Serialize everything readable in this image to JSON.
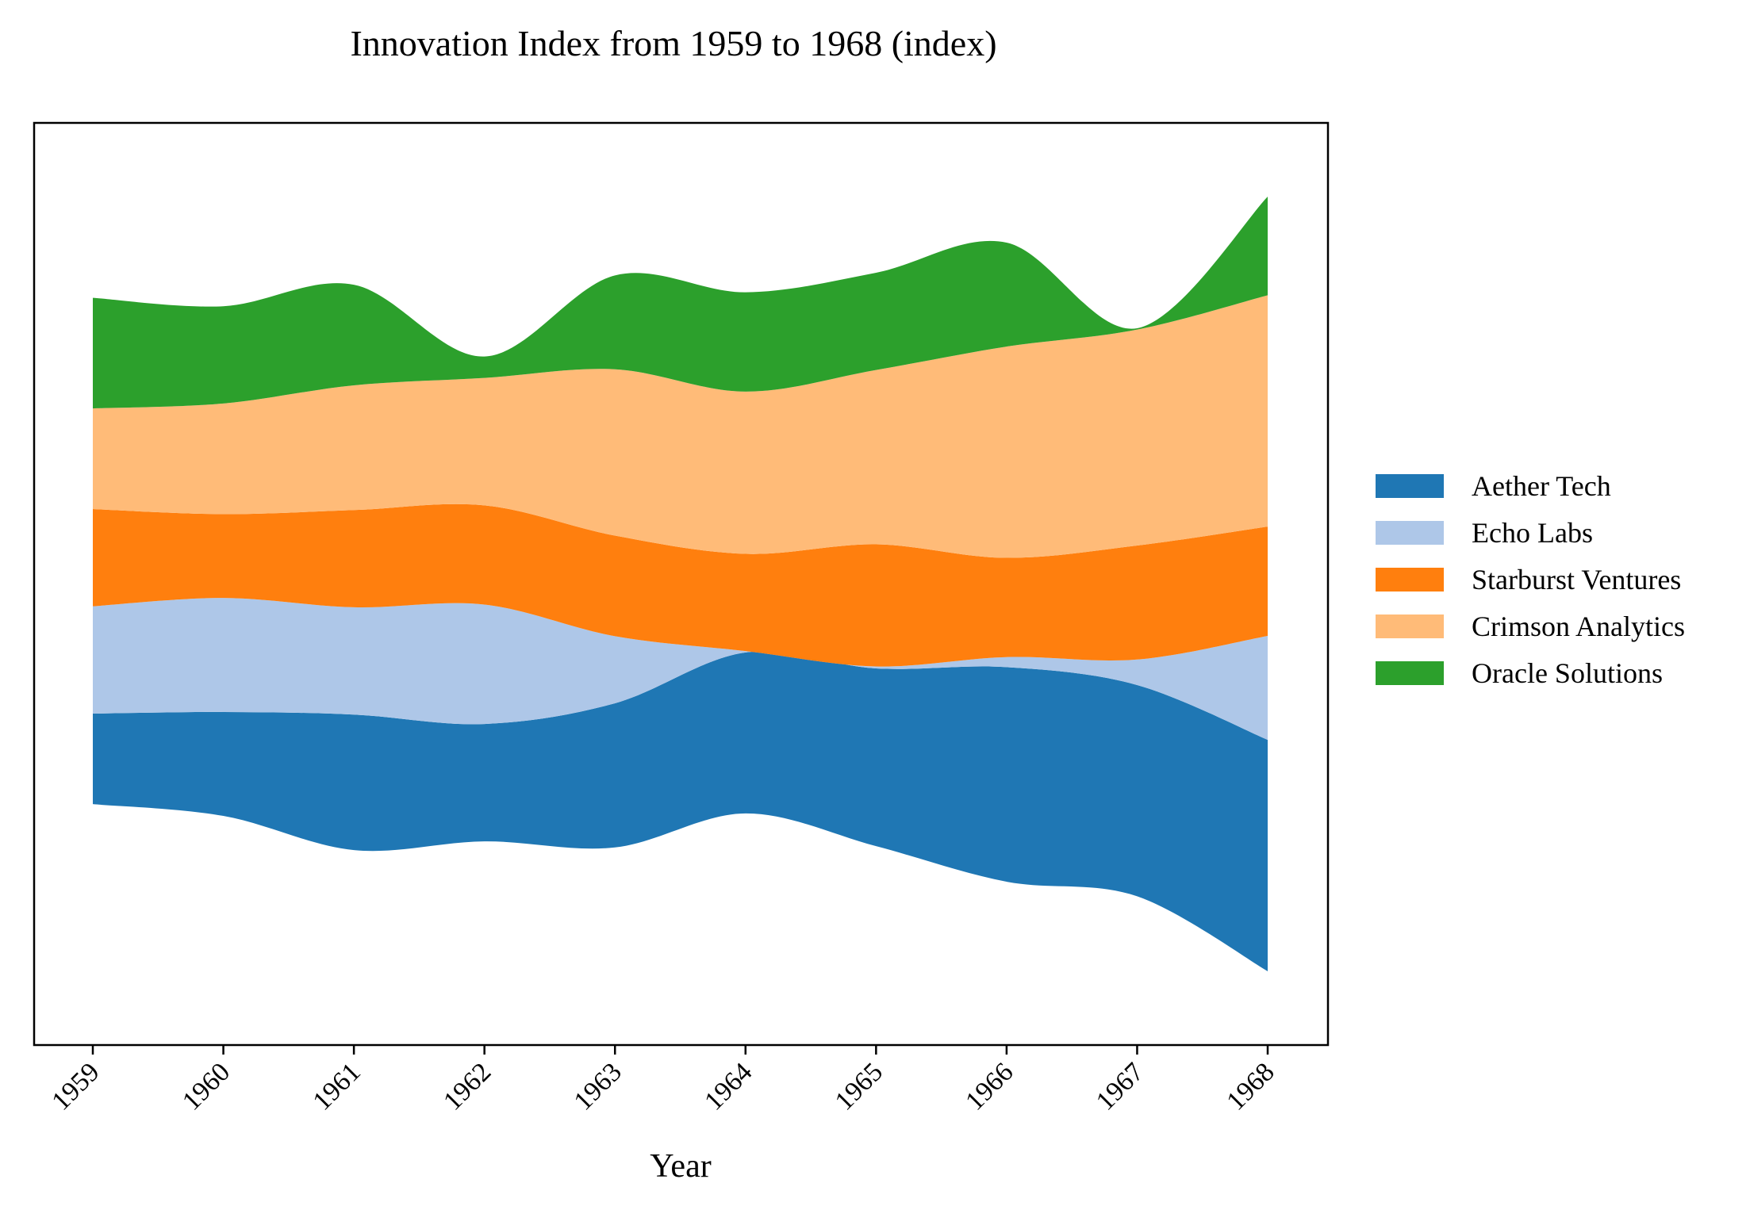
{
  "chart_data": {
    "type": "area",
    "stacked": true,
    "baseline": "wiggle",
    "title": "Innovation Index from 1959 to 1968 (index)",
    "xlabel": "Year",
    "ylabel": "",
    "y_tick_labels_visible": false,
    "x": [
      "1959",
      "1960",
      "1961",
      "1962",
      "1963",
      "1964",
      "1965",
      "1966",
      "1967",
      "1968"
    ],
    "series": [
      {
        "name": "Aether Tech",
        "color": "#1f77b4",
        "values": [
          13.5,
          15.5,
          20.2,
          17.5,
          21.5,
          24.0,
          26.5,
          32.0,
          31.5,
          34.5
        ]
      },
      {
        "name": "Echo Labs",
        "color": "#aec7e8",
        "values": [
          16.0,
          17.0,
          16.0,
          17.8,
          10.0,
          0.2,
          0.3,
          1.5,
          3.8,
          15.5
        ]
      },
      {
        "name": "Starburst Ventures",
        "color": "#ff7f0e",
        "values": [
          14.5,
          12.5,
          14.5,
          14.8,
          15.0,
          14.5,
          18.2,
          14.8,
          17.0,
          16.3
        ]
      },
      {
        "name": "Crimson Analytics",
        "color": "#ffbb78",
        "values": [
          15.0,
          16.5,
          18.6,
          19.0,
          24.8,
          24.2,
          26.0,
          31.5,
          32.2,
          34.5
        ]
      },
      {
        "name": "Oracle Solutions",
        "color": "#2ca02c",
        "values": [
          16.5,
          14.5,
          15.0,
          3.2,
          14.0,
          14.8,
          14.5,
          15.5,
          0.2,
          14.7
        ]
      }
    ],
    "legend": {
      "position": "right",
      "entries": [
        "Aether Tech",
        "Echo Labs",
        "Starburst Ventures",
        "Crimson Analytics",
        "Oracle Solutions"
      ]
    },
    "grid": false
  }
}
